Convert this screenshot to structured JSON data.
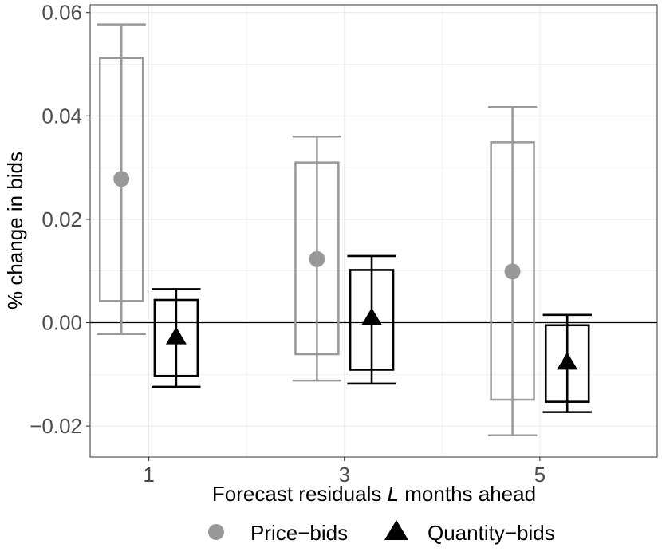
{
  "chart_data": {
    "type": "boxplot-errorbar",
    "xlabel_prefix": "Forecast residuals ",
    "xlabel_var": "L",
    "xlabel_suffix": " months ahead",
    "ylabel": "% change in bids",
    "ylim": [
      -0.026,
      0.0615
    ],
    "xlim": [
      0.4,
      6.2
    ],
    "x_ticks": [
      {
        "value": 1,
        "label": "1"
      },
      {
        "value": 3,
        "label": "3"
      },
      {
        "value": 5,
        "label": "5"
      }
    ],
    "y_ticks": [
      {
        "value": -0.02,
        "label": "−0.02"
      },
      {
        "value": 0.0,
        "label": "0.00"
      },
      {
        "value": 0.02,
        "label": "0.02"
      },
      {
        "value": 0.04,
        "label": "0.04"
      },
      {
        "value": 0.06,
        "label": "0.06"
      }
    ],
    "reference_line_y": 0,
    "series": [
      {
        "name": "Price−bids",
        "color": "#999999",
        "marker": "circle",
        "points": [
          {
            "x": 1,
            "estimate": 0.0278,
            "box_low": 0.0042,
            "box_high": 0.0512,
            "whisker_low": -0.0022,
            "whisker_high": 0.0577
          },
          {
            "x": 3,
            "estimate": 0.0123,
            "box_low": -0.0061,
            "box_high": 0.031,
            "whisker_low": -0.0112,
            "whisker_high": 0.036
          },
          {
            "x": 5,
            "estimate": 0.0099,
            "box_low": -0.0149,
            "box_high": 0.0349,
            "whisker_low": -0.0218,
            "whisker_high": 0.0417
          }
        ]
      },
      {
        "name": "Quantity−bids",
        "color": "#000000",
        "marker": "triangle",
        "points": [
          {
            "x": 1,
            "estimate": -0.0028,
            "box_low": -0.0103,
            "box_high": 0.0044,
            "whisker_low": -0.0124,
            "whisker_high": 0.0065
          },
          {
            "x": 3,
            "estimate": 0.0009,
            "box_low": -0.0091,
            "box_high": 0.0102,
            "whisker_low": -0.0118,
            "whisker_high": 0.0129
          },
          {
            "x": 5,
            "estimate": -0.0077,
            "box_low": -0.0153,
            "box_high": -0.0005,
            "whisker_low": -0.0173,
            "whisker_high": 0.0015
          }
        ]
      }
    ]
  }
}
